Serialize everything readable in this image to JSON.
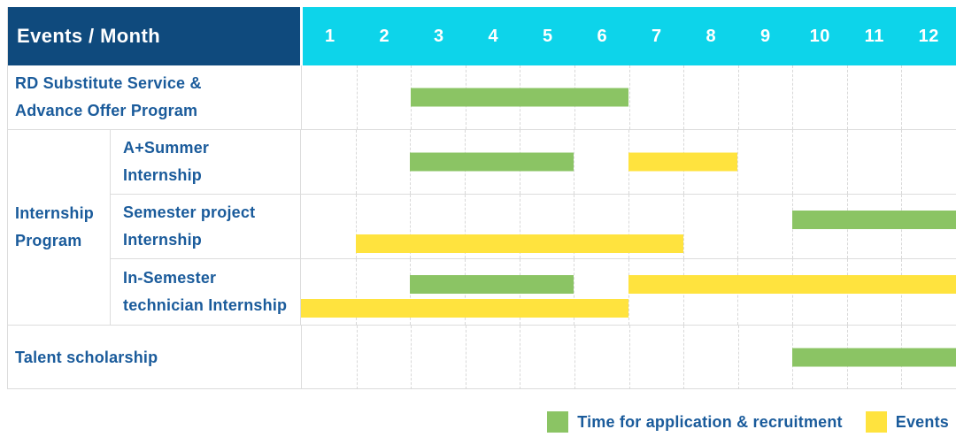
{
  "colors": {
    "header_bg": "#0f4a7d",
    "months_bg": "#0dd4ea",
    "text_blue": "#1a5b9b",
    "green": "#8bc464",
    "yellow": "#ffe33e",
    "border": "#dcdcdc"
  },
  "header": {
    "title": "Events / Month",
    "months": [
      "1",
      "2",
      "3",
      "4",
      "5",
      "6",
      "7",
      "8",
      "9",
      "10",
      "11",
      "12"
    ]
  },
  "group_label": {
    "line1": "Internship",
    "line2": "Program"
  },
  "rows": [
    {
      "label_lines": [
        "RD Substitute Service &",
        "Advance Offer Program"
      ],
      "tracks": [
        [
          {
            "type": "application",
            "start": 3,
            "end": 6
          }
        ]
      ]
    },
    {
      "label_lines": [
        "A+Summer",
        "Internship"
      ],
      "tracks": [
        [
          {
            "type": "application",
            "start": 3,
            "end": 5
          },
          {
            "type": "events",
            "start": 7,
            "end": 8
          }
        ]
      ]
    },
    {
      "label_lines": [
        "Semester project",
        "Internship"
      ],
      "tracks": [
        [
          {
            "type": "application",
            "start": 10,
            "end": 12
          }
        ],
        [
          {
            "type": "events",
            "start": 2,
            "end": 7
          }
        ]
      ]
    },
    {
      "label_lines": [
        "In-Semester",
        "technician Internship"
      ],
      "tracks": [
        [
          {
            "type": "application",
            "start": 3,
            "end": 5
          },
          {
            "type": "events",
            "start": 7,
            "end": 12
          }
        ],
        [
          {
            "type": "events",
            "start": 1,
            "end": 6
          }
        ]
      ]
    },
    {
      "label_lines": [
        "Talent scholarship"
      ],
      "tracks": [
        [
          {
            "type": "application",
            "start": 10,
            "end": 12
          }
        ]
      ]
    }
  ],
  "legend": [
    {
      "type": "application",
      "label": "Time for application & recruitment"
    },
    {
      "type": "events",
      "label": "Events"
    }
  ],
  "chart_data": {
    "type": "bar",
    "variant": "gantt",
    "title": "Events / Month",
    "x_axis": {
      "label": "Month",
      "ticks": [
        1,
        2,
        3,
        4,
        5,
        6,
        7,
        8,
        9,
        10,
        11,
        12
      ],
      "range": [
        1,
        12
      ]
    },
    "grid": true,
    "legend_position": "bottom-right",
    "series_colors": {
      "Time for application & recruitment": "#8bc464",
      "Events": "#ffe33e"
    },
    "tasks": [
      {
        "category": "RD Substitute Service & Advance Offer Program",
        "bars": [
          {
            "series": "Time for application & recruitment",
            "start_month": 3,
            "end_month": 6
          }
        ]
      },
      {
        "category": "Internship Program — A+Summer Internship",
        "bars": [
          {
            "series": "Time for application & recruitment",
            "start_month": 3,
            "end_month": 5
          },
          {
            "series": "Events",
            "start_month": 7,
            "end_month": 8
          }
        ]
      },
      {
        "category": "Internship Program — Semester project Internship",
        "bars": [
          {
            "series": "Time for application & recruitment",
            "start_month": 10,
            "end_month": 12
          },
          {
            "series": "Events",
            "start_month": 2,
            "end_month": 7
          }
        ]
      },
      {
        "category": "Internship Program — In-Semester technician Internship",
        "bars": [
          {
            "series": "Time for application & recruitment",
            "start_month": 3,
            "end_month": 5
          },
          {
            "series": "Events",
            "start_month": 7,
            "end_month": 12
          },
          {
            "series": "Events",
            "start_month": 1,
            "end_month": 6
          }
        ]
      },
      {
        "category": "Talent scholarship",
        "bars": [
          {
            "series": "Time for application & recruitment",
            "start_month": 10,
            "end_month": 12
          }
        ]
      }
    ]
  }
}
